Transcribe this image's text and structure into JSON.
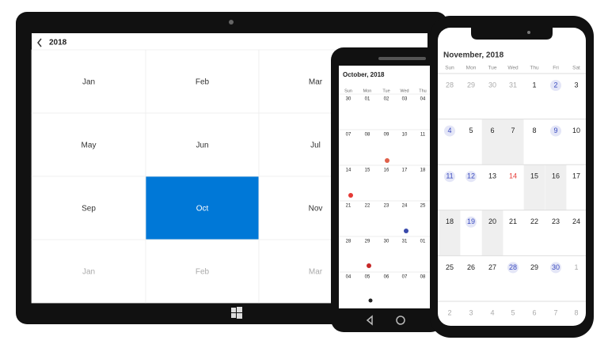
{
  "tablet": {
    "title": "2018",
    "months": [
      [
        "Jan",
        "Feb",
        "Mar"
      ],
      [
        "May",
        "Jun",
        "Jul"
      ],
      [
        "Sep",
        "Oct",
        "Nov"
      ],
      [
        "Jan",
        "Feb",
        "Mar"
      ]
    ]
  },
  "android": {
    "title": "October, 2018",
    "weekdays": [
      "Sun",
      "Mon",
      "Tue",
      "Wed",
      "Thu"
    ],
    "weeks": [
      [
        "30",
        "01",
        "02",
        "03",
        "04"
      ],
      [
        "07",
        "08",
        "09",
        "10",
        "11"
      ],
      [
        "14",
        "15",
        "16",
        "17",
        "18"
      ],
      [
        "21",
        "22",
        "23",
        "24",
        "25"
      ],
      [
        "28",
        "29",
        "30",
        "31",
        "01"
      ],
      [
        "04",
        "05",
        "06",
        "07",
        "08"
      ]
    ]
  },
  "iphone": {
    "title": "November, 2018",
    "weekdays": [
      "Sun",
      "Mon",
      "Tue",
      "Wed",
      "Thu",
      "Fri",
      "Sat"
    ],
    "weeks": [
      [
        "28",
        "29",
        "30",
        "31",
        "1",
        "2",
        "3"
      ],
      [
        "4",
        "5",
        "6",
        "7",
        "8",
        "9",
        "10"
      ],
      [
        "11",
        "12",
        "13",
        "14",
        "15",
        "16",
        "17"
      ],
      [
        "18",
        "19",
        "20",
        "21",
        "22",
        "23",
        "24"
      ],
      [
        "25",
        "26",
        "27",
        "28",
        "29",
        "30",
        "1"
      ],
      [
        "2",
        "3",
        "4",
        "5",
        "6",
        "7",
        "8"
      ]
    ]
  }
}
